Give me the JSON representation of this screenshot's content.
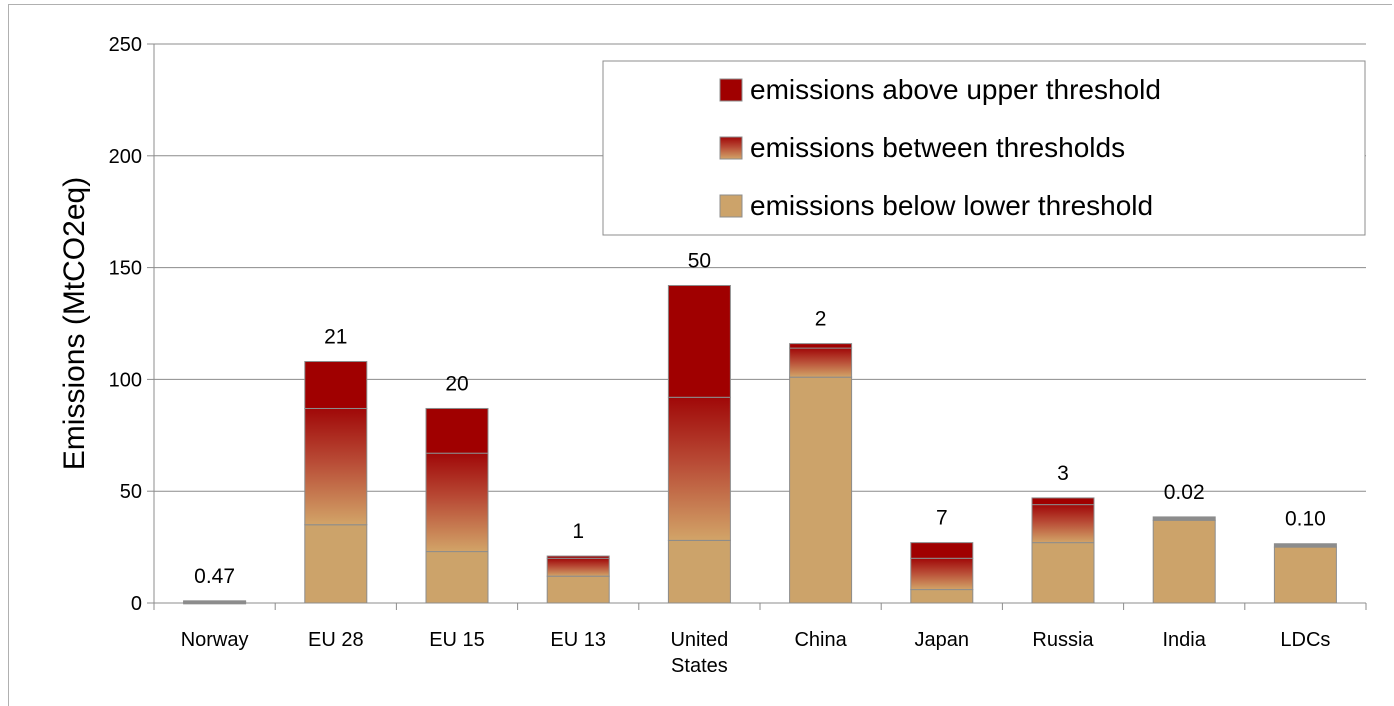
{
  "chart_data": {
    "type": "bar",
    "stacked": true,
    "title": "",
    "xlabel": "",
    "ylabel": "Emissions (MtCO2eq)",
    "ylim": [
      0,
      250
    ],
    "yticks": [
      0,
      50,
      100,
      150,
      200,
      250
    ],
    "grid": true,
    "legend_position": "top-right",
    "categories": [
      [
        "Norway"
      ],
      [
        "EU 28"
      ],
      [
        "EU 15"
      ],
      [
        "EU 13"
      ],
      [
        "United",
        "States"
      ],
      [
        "China"
      ],
      [
        "Japan"
      ],
      [
        "Russia"
      ],
      [
        "India"
      ],
      [
        "LDCs"
      ]
    ],
    "series": [
      {
        "name": "emissions below lower threshold",
        "color": "#cca36a",
        "values": [
          0.5,
          35,
          23,
          12,
          28,
          101,
          6,
          27,
          37,
          25
        ]
      },
      {
        "name": "emissions between thresholds",
        "color": "#b53a2a",
        "values": [
          0,
          52,
          44,
          8,
          64,
          13,
          14,
          17,
          0,
          0
        ]
      },
      {
        "name": "emissions above upper threshold",
        "color": "#a00000",
        "values": [
          0,
          21,
          20,
          1,
          50,
          2,
          7,
          3,
          0,
          0
        ]
      }
    ],
    "bar_top_gray": [
      0.47,
      0,
      0,
      0,
      0,
      0,
      0,
      0,
      1.5,
      1.5
    ],
    "data_labels": [
      "0.47",
      "21",
      "20",
      "1",
      "50",
      "2",
      "7",
      "3",
      "0.02",
      "0.10"
    ]
  }
}
